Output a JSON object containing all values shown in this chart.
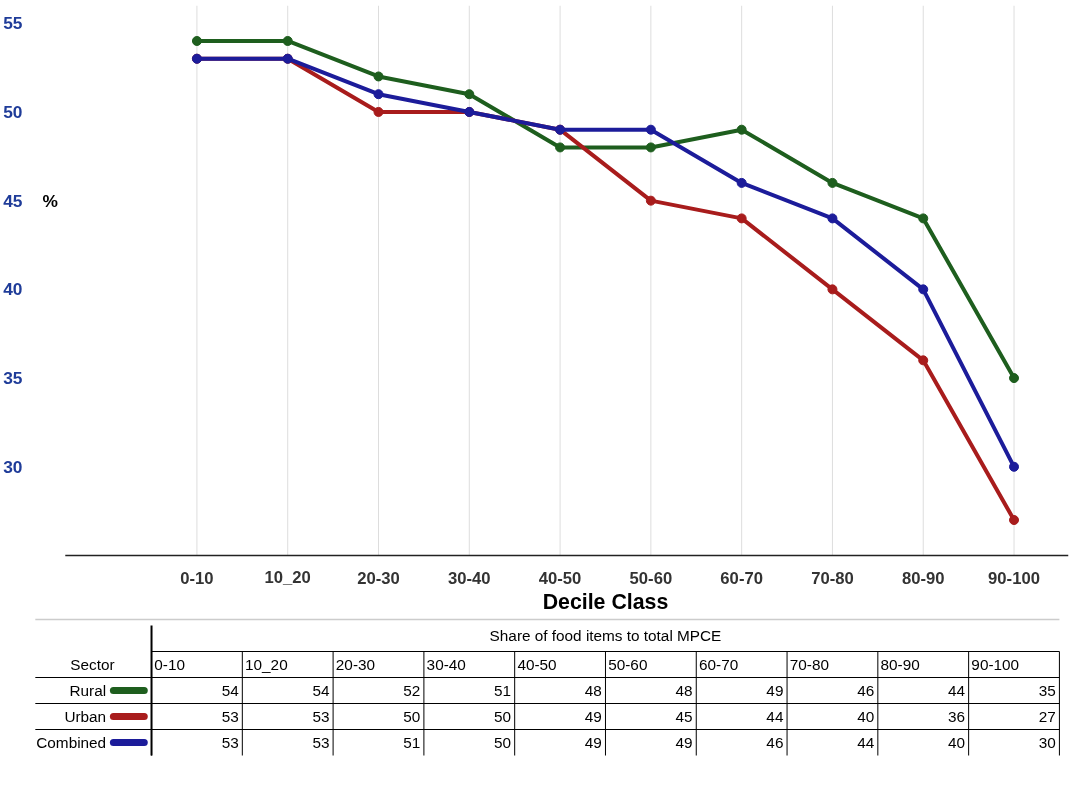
{
  "chart_data": {
    "type": "line",
    "xlabel": "Decile Class",
    "ylabel": "%",
    "categories": [
      "0-10",
      "10_20",
      "20-30",
      "30-40",
      "40-50",
      "50-60",
      "60-70",
      "70-80",
      "80-90",
      "90-100"
    ],
    "series": [
      {
        "name": "Rural",
        "color": "#1e5e1e",
        "values": [
          54,
          54,
          52,
          51,
          48,
          48,
          49,
          46,
          44,
          35
        ]
      },
      {
        "name": "Urban",
        "color": "#a81c1c",
        "values": [
          53,
          53,
          50,
          50,
          49,
          45,
          44,
          40,
          36,
          27
        ]
      },
      {
        "name": "Combined",
        "color": "#1c1c9a",
        "values": [
          53,
          53,
          51,
          50,
          49,
          49,
          46,
          44,
          40,
          30
        ]
      }
    ],
    "ylim": [
      25,
      56
    ],
    "yticks": [
      30,
      35,
      40,
      45,
      50,
      55
    ],
    "grid": "x",
    "marker": "circle",
    "line_style": "solid",
    "legend": "bottom",
    "data_labels": true,
    "annotations": [
      "Share of food items to total MPCE",
      "Sector"
    ]
  }
}
